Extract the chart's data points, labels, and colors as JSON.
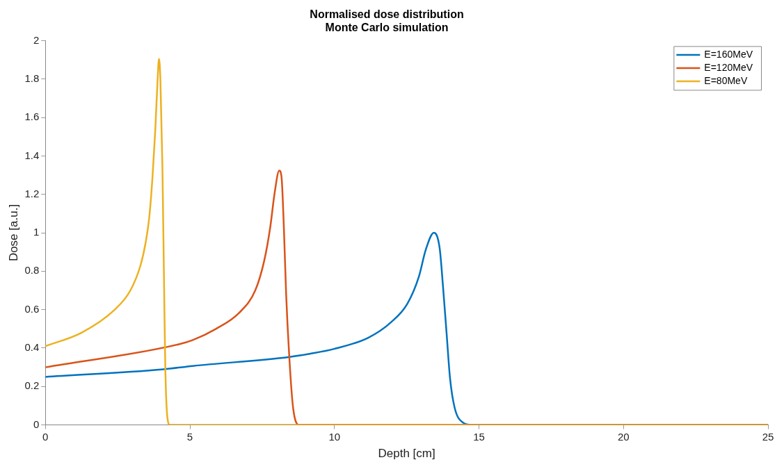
{
  "chart_data": {
    "type": "line",
    "title": "Normalised dose distribution",
    "subtitle": "Monte Carlo simulation",
    "xlabel": "Depth [cm]",
    "ylabel": "Dose [a.u.]",
    "xlim": [
      0,
      25
    ],
    "xticks": [
      0,
      5,
      10,
      15,
      20,
      25
    ],
    "ylim": [
      0,
      2
    ],
    "yticks": [
      0,
      0.2,
      0.4,
      0.6,
      0.8,
      1,
      1.2,
      1.4,
      1.6,
      1.8,
      2
    ],
    "grid": false,
    "legend": "top right",
    "marker": "none",
    "line_style": "solid",
    "series": [
      {
        "name": "E=160MeV",
        "color": "#0072bd",
        "x": [
          0,
          4.09,
          5.1,
          8.45,
          9.17,
          9.97,
          11.17,
          11.97,
          12.52,
          12.92,
          13.16,
          13.44,
          13.64,
          13.76,
          13.88,
          14.0,
          14.16,
          14.44,
          14.76,
          25
        ],
        "values": [
          0.25,
          0.29,
          0.307,
          0.354,
          0.371,
          0.395,
          0.454,
          0.536,
          0.63,
          0.771,
          0.912,
          1.0,
          0.92,
          0.713,
          0.477,
          0.242,
          0.089,
          0.013,
          0,
          0
        ]
      },
      {
        "name": "E=120MeV",
        "color": "#d95319",
        "x": [
          0,
          4.62,
          5.1,
          5.9,
          6.7,
          7.26,
          7.57,
          7.78,
          7.93,
          8.09,
          8.17,
          8.25,
          8.33,
          8.45,
          8.57,
          8.77,
          25
        ],
        "values": [
          0.3,
          0.42,
          0.442,
          0.5,
          0.583,
          0.7,
          0.854,
          1.03,
          1.206,
          1.324,
          1.289,
          1.03,
          0.677,
          0.325,
          0.089,
          0,
          0
        ]
      },
      {
        "name": "E=80MeV",
        "color": "#edb120",
        "x": [
          0,
          1.25,
          2.4,
          2.94,
          3.29,
          3.47,
          3.6,
          3.71,
          3.8,
          3.88,
          3.93,
          3.98,
          4.05,
          4.11,
          4.15,
          4.22,
          4.31,
          25
        ],
        "values": [
          0.41,
          0.48,
          0.6,
          0.7,
          0.83,
          0.95,
          1.09,
          1.3,
          1.53,
          1.79,
          1.905,
          1.79,
          1.33,
          0.68,
          0.29,
          0.04,
          0,
          0
        ]
      }
    ]
  }
}
